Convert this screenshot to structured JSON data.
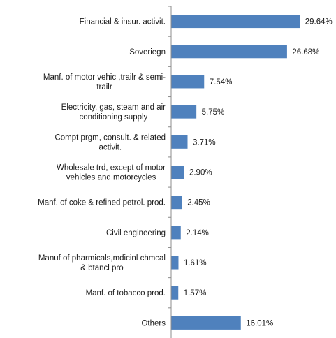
{
  "chart_data": {
    "type": "bar",
    "orientation": "horizontal",
    "categories": [
      "Financial & insur. activit.",
      "Soveriegn",
      "Manf. of motor vehic ,trailr & semi-trailr",
      "Electricity, gas, steam and air conditioning supply",
      "Compt prgm, consult. & related activit.",
      "Wholesale trd, except of motor vehicles and motorcycles",
      "Manf. of coke & refined petrol. prod.",
      "Civil engineering",
      "Manuf of pharmicals,mdicinl chmcal & btancl pro",
      "Manf. of tobacco prod.",
      "Others"
    ],
    "category_lines": [
      [
        "Financial & insur. activit."
      ],
      [
        "Soveriegn"
      ],
      [
        "Manf. of motor vehic ,trailr & semi-",
        "trailr"
      ],
      [
        "Electricity, gas, steam and air",
        "conditioning supply"
      ],
      [
        "Compt prgm, consult. & related",
        "activit."
      ],
      [
        "Wholesale trd, except of motor",
        "vehicles and motorcycles"
      ],
      [
        "Manf. of coke & refined petrol. prod."
      ],
      [
        "Civil engineering"
      ],
      [
        "Manuf of pharmicals,mdicinl chmcal",
        "& btancl pro"
      ],
      [
        "Manf. of tobacco prod."
      ],
      [
        "Others"
      ]
    ],
    "values": [
      29.64,
      26.68,
      7.54,
      5.75,
      3.71,
      2.9,
      2.45,
      2.14,
      1.61,
      1.57,
      16.01
    ],
    "value_labels": [
      "29.64%",
      "26.68%",
      "7.54%",
      "5.75%",
      "3.71%",
      "2.90%",
      "2.45%",
      "2.14%",
      "1.61%",
      "1.57%",
      "16.01%"
    ],
    "title": "",
    "xlabel": "",
    "ylabel": "",
    "xlim": [
      0,
      35
    ],
    "grid": false,
    "legend": "none",
    "bar_color": "#4f81bd"
  }
}
